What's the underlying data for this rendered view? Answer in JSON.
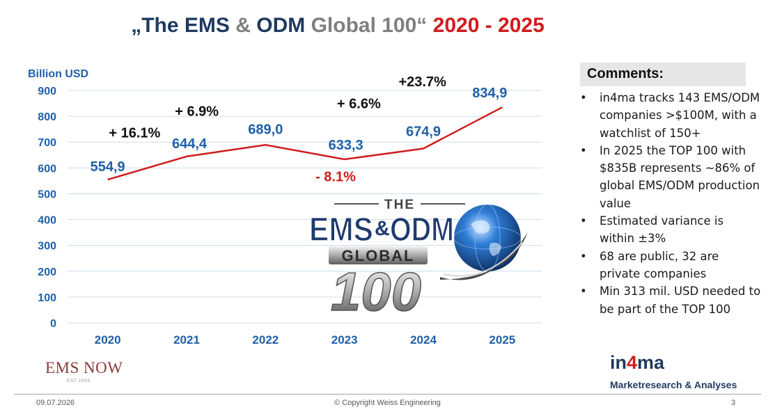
{
  "title": {
    "quote_open": "„The ",
    "part_ems": "EMS",
    "part_and": " & ",
    "part_odm": "ODM",
    "part_global": " Global 100“ ",
    "part_years": "2020 - 2025"
  },
  "chart_data": {
    "type": "line",
    "ylabel": "Billion USD",
    "ylim": [
      0,
      900
    ],
    "yticks": [
      0,
      100,
      200,
      300,
      400,
      500,
      600,
      700,
      800,
      900
    ],
    "categories": [
      "2020",
      "2021",
      "2022",
      "2023",
      "2024",
      "2025"
    ],
    "values": [
      554.9,
      644.4,
      689.0,
      633.3,
      674.9,
      834.9
    ],
    "value_labels": [
      "554,9",
      "644,4",
      "689,0",
      "633,3",
      "674,9",
      "834,9"
    ],
    "growth_labels": [
      "+ 16.1%",
      "+ 6.9%",
      "- 8.1%",
      "+ 6.6%",
      "+23.7%"
    ],
    "grid": true,
    "colors": {
      "line": "#d01c1c",
      "values": "#1f5fa8",
      "ticks": "#1f5fa8",
      "growth_positive": "#111111",
      "growth_negative": "#d01c1c",
      "grid": "#c9dcec"
    }
  },
  "logo": {
    "line1": "THE",
    "line2a": "EMS",
    "line2b": "&",
    "line2c": "ODM",
    "line3": "GLOBAL",
    "line4": "100"
  },
  "comments": {
    "title": "Comments:",
    "items": [
      "in4ma tracks 143 EMS/ODM companies >$100M, with a watchlist of 150+",
      "In 2025 the TOP 100 with $835B represents ~86% of global EMS/ODM production value",
      "Estimated variance is within ±3%",
      "68 are public, 32 are private companies",
      "Min 313 mil. USD needed to be part of the TOP 100"
    ]
  },
  "emsnow": {
    "name": "EMS NOW",
    "est": "EST.2002"
  },
  "in4ma": {
    "a": "in",
    "b": "4",
    "c": "ma",
    "subtitle": "Marketresearch & Analyses"
  },
  "footer": {
    "date": "09.07.2026",
    "copyright": "© Copyright Weiss Engineering",
    "page": "3"
  }
}
